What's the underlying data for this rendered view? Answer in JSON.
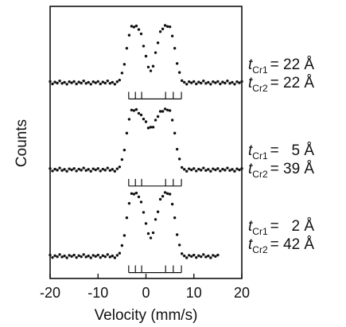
{
  "chart_data": {
    "type": "scatter",
    "x_label": "Velocity (mm/s)",
    "y_label": "Counts",
    "xlim": [
      -20,
      20
    ],
    "xticks": [
      -20,
      -10,
      0,
      10,
      20
    ],
    "ylim": [
      0,
      100
    ],
    "x": [
      -20,
      -19.5,
      -19,
      -18.5,
      -18,
      -17.5,
      -17,
      -16.5,
      -16,
      -15.5,
      -15,
      -14.5,
      -14,
      -13.5,
      -13,
      -12.5,
      -12,
      -11.5,
      -11,
      -10.5,
      -10,
      -9.5,
      -9,
      -8.5,
      -8,
      -7.5,
      -7,
      -6.5,
      -6,
      -5.5,
      -5,
      -4.5,
      -4,
      -3.5,
      -3,
      -2.5,
      -2,
      -1.5,
      -1,
      -0.5,
      0,
      0.5,
      1,
      1.5,
      2,
      2.5,
      3,
      3.5,
      4,
      4.5,
      5,
      5.5,
      6,
      6.5,
      7,
      7.5,
      8,
      8.5,
      9,
      9.5,
      10,
      10.5,
      11,
      11.5,
      12,
      12.5,
      13,
      13.5,
      14,
      14.5,
      15,
      15.5,
      16,
      16.5,
      17,
      17.5,
      18,
      18.5,
      19,
      19.5,
      20
    ],
    "series": [
      {
        "color": "#111111",
        "values": [
          72.4,
          71.5,
          72.2,
          71.8,
          72.6,
          71.7,
          72.1,
          71.4,
          72.3,
          71.9,
          72.4,
          71.5,
          72.2,
          71.8,
          72.6,
          71.7,
          72.1,
          71.4,
          72.3,
          71.9,
          72.4,
          71.5,
          72.2,
          71.8,
          72.6,
          71.7,
          72.1,
          71.4,
          72.3,
          72.9,
          75.5,
          78.7,
          84.6,
          89.4,
          92.7,
          92.4,
          92.8,
          91.5,
          89.9,
          85.4,
          81.7,
          77.7,
          76.3,
          78.0,
          83.0,
          86.6,
          90.7,
          91.7,
          93.0,
          92.6,
          92.5,
          89.1,
          84.6,
          79.0,
          75.7,
          72.7,
          72.1,
          71.4,
          72.3,
          71.9,
          72.4,
          71.5,
          72.2,
          71.8,
          72.6,
          71.7,
          72.1,
          71.4,
          72.3,
          71.9,
          72.4,
          71.5,
          72.2,
          71.8,
          72.6,
          71.7,
          72.1,
          71.4,
          72.3,
          71.9,
          72.4
        ]
      },
      {
        "color": "#111111",
        "values": [
          40.4,
          39.5,
          40.2,
          39.8,
          40.6,
          39.7,
          40.1,
          39.4,
          40.3,
          39.9,
          40.4,
          39.5,
          40.2,
          39.8,
          40.6,
          39.7,
          40.1,
          39.4,
          40.3,
          39.9,
          40.4,
          39.5,
          40.2,
          39.8,
          40.6,
          39.7,
          40.1,
          39.4,
          40.3,
          41.0,
          43.7,
          47.2,
          53.4,
          58.5,
          61.9,
          61.7,
          62.1,
          60.7,
          60.1,
          58.6,
          57.6,
          55.3,
          55.6,
          55.6,
          58.2,
          59.5,
          61.4,
          61.4,
          62.3,
          61.9,
          61.7,
          58.2,
          53.4,
          47.5,
          43.9,
          40.8,
          40.1,
          39.4,
          40.3,
          39.9,
          40.4,
          39.5,
          40.2,
          39.8,
          40.6,
          39.7,
          40.1,
          39.4,
          40.3,
          39.9,
          40.4,
          39.5,
          40.2,
          39.8,
          40.6,
          39.7,
          40.1,
          39.4,
          40.3,
          39.9,
          40.4
        ]
      },
      {
        "color": "#111111",
        "values": [
          8.6,
          7.7,
          8.4,
          8.0,
          8.8,
          7.9,
          8.3,
          7.6,
          8.5,
          8.1,
          8.6,
          7.7,
          8.4,
          8.0,
          8.8,
          7.9,
          8.3,
          7.6,
          8.5,
          8.1,
          8.6,
          7.7,
          8.4,
          8.0,
          8.8,
          7.9,
          8.3,
          7.6,
          8.5,
          9.3,
          12.1,
          15.8,
          22.3,
          27.6,
          31.2,
          31.0,
          31.4,
          30.0,
          28.1,
          24.3,
          20.2,
          16.5,
          14.9,
          16.8,
          21.7,
          24.5,
          29.1,
          30.2,
          31.6,
          31.2,
          31.0,
          27.3,
          22.3,
          16.1,
          12.3,
          9.1,
          8.3,
          7.6,
          8.5,
          8.1,
          8.6,
          7.7,
          8.4,
          8.0,
          8.8,
          7.9,
          8.3,
          7.6,
          8.5,
          8.1,
          8.6
        ]
      }
    ],
    "stick_positions": [
      -3.6,
      -2.2,
      -0.9,
      4.1,
      5.7,
      7.4
    ],
    "annotations": [
      [
        {
          "symbol": "t",
          "sub": "Cr1",
          "text": "= 22 Å"
        },
        {
          "symbol": "t",
          "sub": "Cr2",
          "text": "= 22 Å"
        }
      ],
      [
        {
          "symbol": "t",
          "sub": "Cr1",
          "text": "=   5 Å"
        },
        {
          "symbol": "t",
          "sub": "Cr2",
          "text": "= 39 Å"
        }
      ],
      [
        {
          "symbol": "t",
          "sub": "Cr1",
          "text": "=   2 Å"
        },
        {
          "symbol": "t",
          "sub": "Cr2",
          "text": "= 42 Å"
        }
      ]
    ]
  }
}
